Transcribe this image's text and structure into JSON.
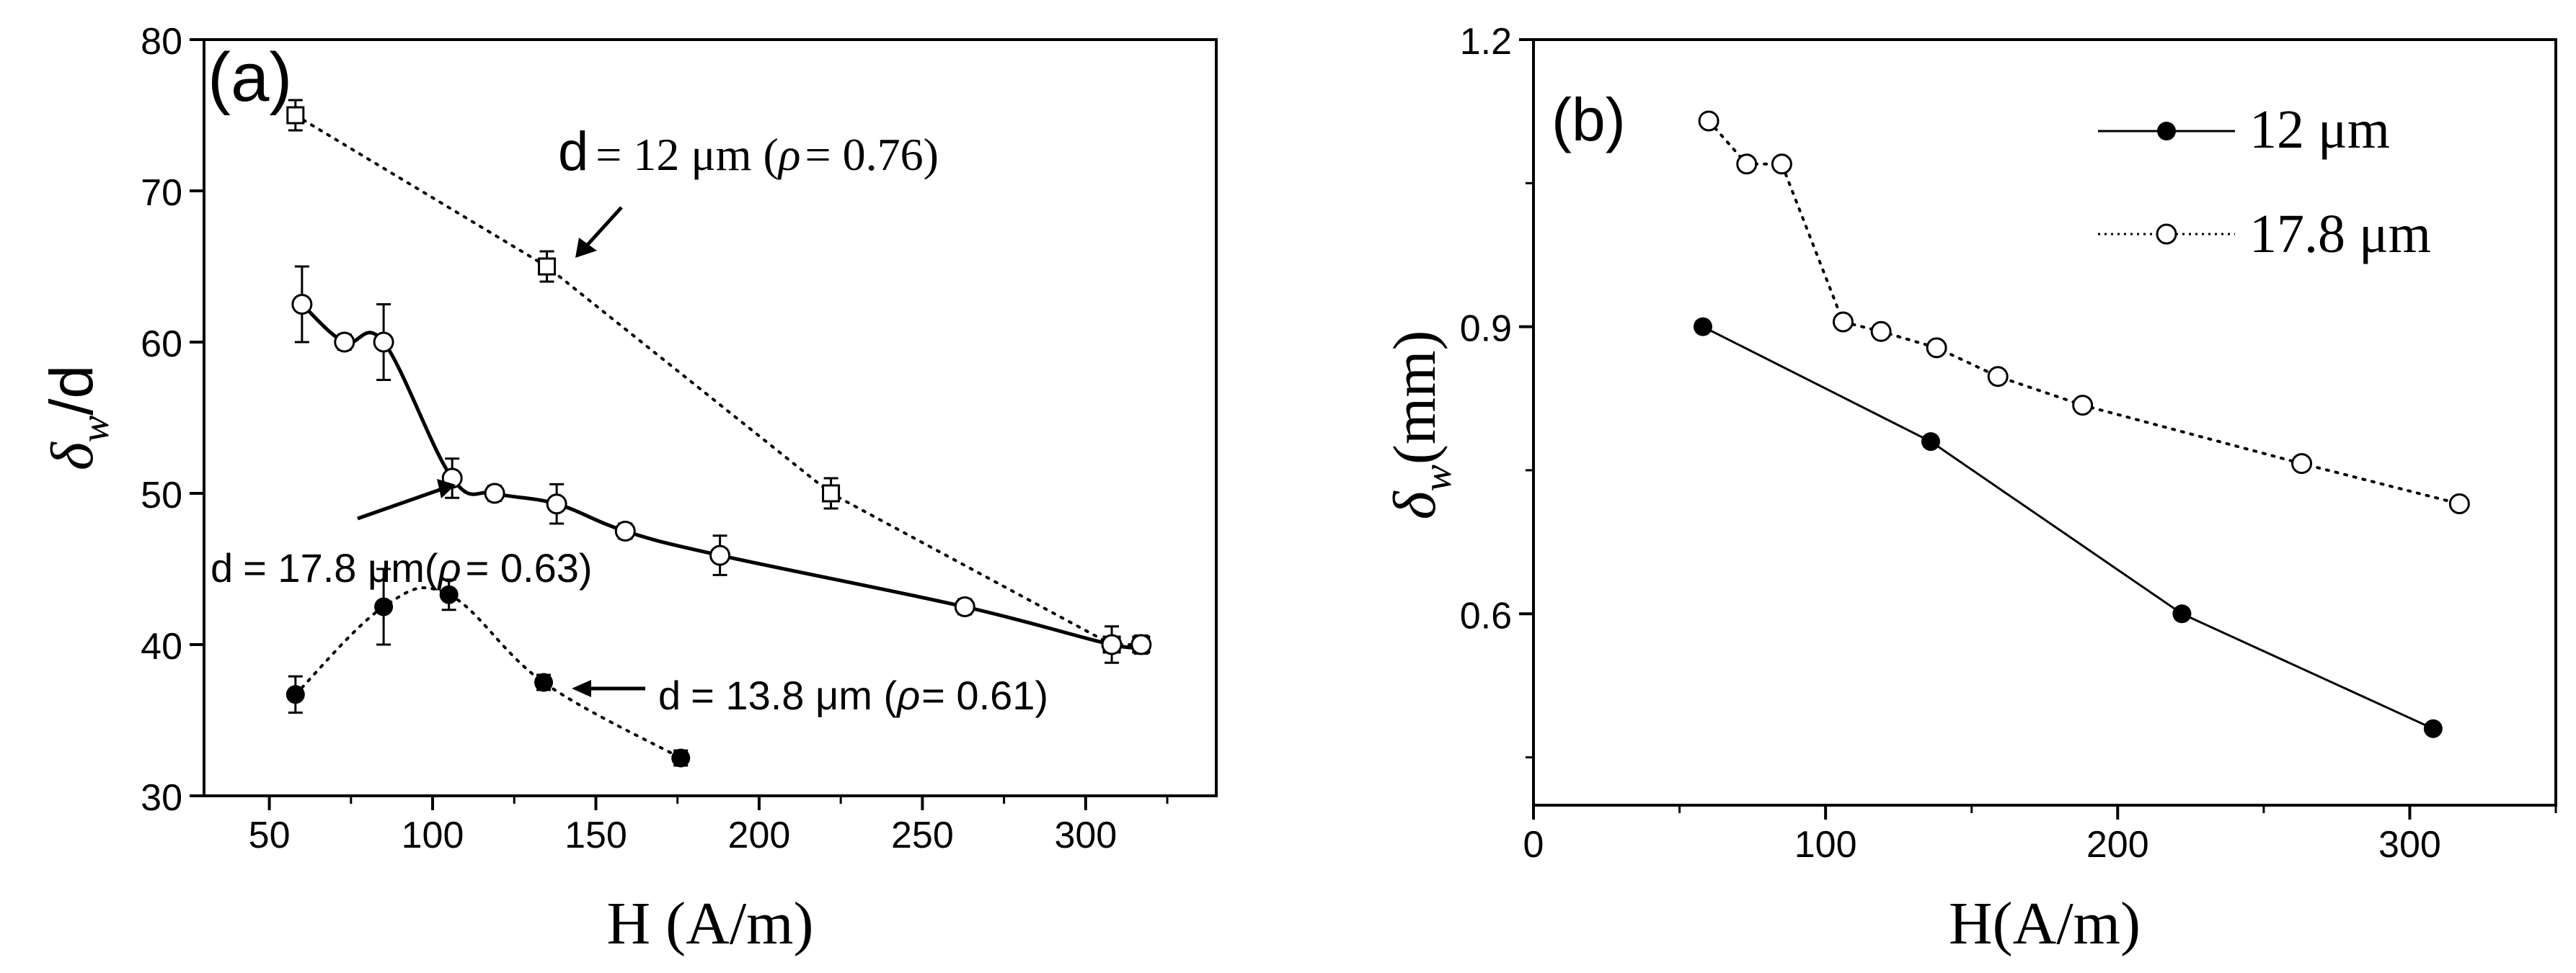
{
  "chart_data": [
    {
      "panel": "a",
      "type": "scatter",
      "panel_label": "(a)",
      "xlabel": "H (A/m)",
      "ylabel_symbol": "δ",
      "ylabel_sub": "w",
      "ylabel_suffix": "/d",
      "xlim": [
        30,
        340
      ],
      "ylim": [
        30,
        80
      ],
      "xticks": [
        50,
        100,
        150,
        200,
        250,
        300
      ],
      "yticks": [
        30,
        40,
        50,
        60,
        70,
        80
      ],
      "series": [
        {
          "name": "d = 12 μm (ρ = 0.76)",
          "marker": "open-square",
          "line": "dotted-straight",
          "x": [
            58,
            135,
            222,
            308,
            317
          ],
          "y": [
            75,
            65,
            50,
            40,
            40
          ],
          "err": [
            1.0,
            1.0,
            1.0,
            1.2,
            0.6
          ]
        },
        {
          "name": "d = 17.8 μm(ρ = 0.63)",
          "marker": "open-circle",
          "line": "solid-smooth",
          "x": [
            60,
            73,
            85,
            106,
            119,
            138,
            159,
            188,
            263,
            308,
            317
          ],
          "y": [
            62.5,
            60,
            60,
            51,
            50,
            49.3,
            47.5,
            45.9,
            42.5,
            40,
            40
          ],
          "err": [
            2.5,
            0.5,
            2.5,
            1.3,
            0.5,
            1.3,
            0.5,
            1.3,
            0.5,
            0.5,
            0.5
          ]
        },
        {
          "name": "d = 13.8 μm (ρ= 0.61)",
          "marker": "filled-circle",
          "line": "dotted-smooth",
          "x": [
            58,
            85,
            105,
            134,
            176
          ],
          "y": [
            36.7,
            42.5,
            43.3,
            37.5,
            32.5
          ],
          "err": [
            1.2,
            2.5,
            1.0,
            0.5,
            0.5
          ]
        }
      ],
      "annotations": [
        {
          "d": "d",
          "num": "= 12 μm (",
          "rho": "ρ",
          "tail": "= 0.76)"
        },
        {
          "d": "d",
          "num": "= 17.8 μm(",
          "rho": "ρ",
          "tail": "= 0.63)"
        },
        {
          "d": "d",
          "num": "= 13.8 μm (",
          "rho": "ρ",
          "tail": "= 0.61)"
        }
      ]
    },
    {
      "panel": "b",
      "type": "line",
      "panel_label": "(b)",
      "xlabel": "H(A/m)",
      "ylabel_symbol": "δ",
      "ylabel_sub": "w",
      "ylabel_suffix": "(mm)",
      "xlim": [
        0,
        350
      ],
      "ylim": [
        0.4,
        1.2
      ],
      "xticks": [
        0,
        100,
        200,
        300
      ],
      "yticks": [
        0.6,
        0.9,
        1.2
      ],
      "series": [
        {
          "name": "12 μm",
          "marker": "filled-circle",
          "line": "solid",
          "x": [
            58,
            136,
            222,
            308
          ],
          "y": [
            0.9,
            0.78,
            0.6,
            0.48
          ]
        },
        {
          "name": "17.8 μm",
          "marker": "open-circle",
          "line": "dotted",
          "x": [
            60,
            73,
            85,
            106,
            119,
            138,
            159,
            188,
            263,
            317
          ],
          "y": [
            1.115,
            1.07,
            1.07,
            0.905,
            0.895,
            0.878,
            0.848,
            0.818,
            0.757,
            0.715
          ]
        }
      ],
      "legend_position": "top-right"
    }
  ]
}
